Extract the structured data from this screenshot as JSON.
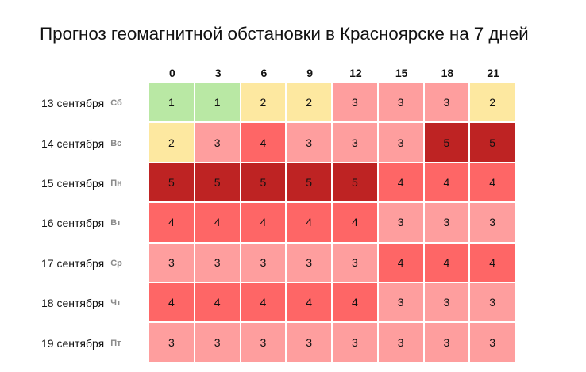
{
  "page": {
    "title": "Прогноз геомагнитной обстановки в Красноярске на 7 дней"
  },
  "colors": {
    "1": "#b9e8a4",
    "2": "#fde8a0",
    "3": "#fe9e9e",
    "4": "#fe6666",
    "5": "#be2323"
  },
  "table": {
    "hours": [
      "0",
      "3",
      "6",
      "9",
      "12",
      "15",
      "18",
      "21"
    ],
    "rows": [
      {
        "date": "13 сентября",
        "dow": "Сб",
        "values": [
          1,
          1,
          2,
          2,
          3,
          3,
          3,
          2
        ]
      },
      {
        "date": "14 сентября",
        "dow": "Вс",
        "values": [
          2,
          3,
          4,
          3,
          3,
          3,
          5,
          5
        ]
      },
      {
        "date": "15 сентября",
        "dow": "Пн",
        "values": [
          5,
          5,
          5,
          5,
          5,
          4,
          4,
          4
        ]
      },
      {
        "date": "16 сентября",
        "dow": "Вт",
        "values": [
          4,
          4,
          4,
          4,
          4,
          3,
          3,
          3
        ]
      },
      {
        "date": "17 сентября",
        "dow": "Ср",
        "values": [
          3,
          3,
          3,
          3,
          3,
          4,
          4,
          4
        ]
      },
      {
        "date": "18 сентября",
        "dow": "Чт",
        "values": [
          4,
          4,
          4,
          4,
          4,
          3,
          3,
          3
        ]
      },
      {
        "date": "19 сентября",
        "dow": "Пт",
        "values": [
          3,
          3,
          3,
          3,
          3,
          3,
          3,
          3
        ]
      }
    ]
  },
  "chart_data": {
    "type": "heatmap",
    "title": "Прогноз геомагнитной обстановки в Красноярске на 7 дней",
    "xlabel": "",
    "ylabel": "",
    "x": [
      "0",
      "3",
      "6",
      "9",
      "12",
      "15",
      "18",
      "21"
    ],
    "y": [
      "13 сентября Сб",
      "14 сентября Вс",
      "15 сентября Пн",
      "16 сентября Вт",
      "17 сентября Ср",
      "18 сентября Чт",
      "19 сентября Пт"
    ],
    "values": [
      [
        1,
        1,
        2,
        2,
        3,
        3,
        3,
        2
      ],
      [
        2,
        3,
        4,
        3,
        3,
        3,
        5,
        5
      ],
      [
        5,
        5,
        5,
        5,
        5,
        4,
        4,
        4
      ],
      [
        4,
        4,
        4,
        4,
        4,
        3,
        3,
        3
      ],
      [
        3,
        3,
        3,
        3,
        3,
        4,
        4,
        4
      ],
      [
        4,
        4,
        4,
        4,
        4,
        3,
        3,
        3
      ],
      [
        3,
        3,
        3,
        3,
        3,
        3,
        3,
        3
      ]
    ],
    "color_scale": {
      "1": "#b9e8a4",
      "2": "#fde8a0",
      "3": "#fe9e9e",
      "4": "#fe6666",
      "5": "#be2323"
    },
    "legend": "none"
  }
}
